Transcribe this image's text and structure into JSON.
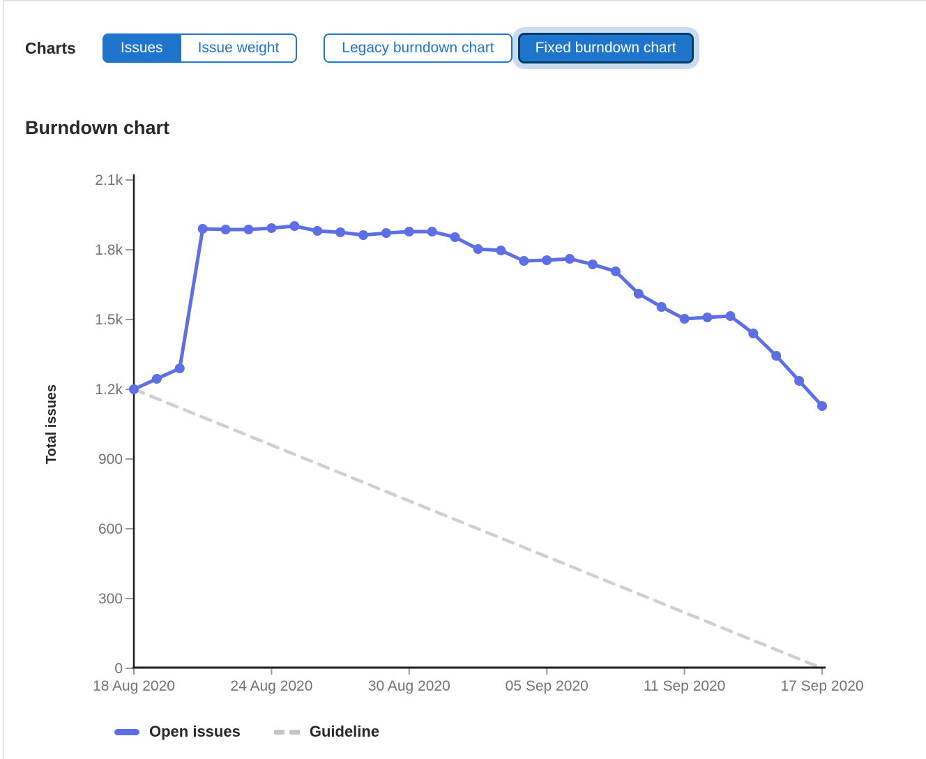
{
  "header": {
    "charts_label": "Charts",
    "issue_toggle": {
      "options": [
        {
          "label": "Issues",
          "selected": true
        },
        {
          "label": "Issue weight",
          "selected": false
        }
      ]
    },
    "chart_version_toggle": {
      "options": [
        {
          "label": "Legacy burndown chart",
          "selected": false
        },
        {
          "label": "Fixed burndown chart",
          "selected": true
        }
      ]
    }
  },
  "section": {
    "title": "Burndown chart"
  },
  "colors": {
    "accent": "#1f75cb",
    "accent_dark": "#043b68",
    "focus_ring": "#c7dcee",
    "line_blue": "#5e6fe6",
    "guideline_gray": "#cfcfd2",
    "axis": "#1f1e24",
    "tick": "#99989e",
    "tick_label": "#737278",
    "text": "#28272d",
    "border": "#e1e1e3"
  },
  "chart_data": {
    "type": "line",
    "title": "Burndown chart",
    "xlabel": "",
    "ylabel": "Total issues",
    "ylim": [
      0,
      2100
    ],
    "grid": false,
    "legend_position": "bottom-left",
    "categories": [
      "18 Aug 2020",
      "19 Aug 2020",
      "20 Aug 2020",
      "21 Aug 2020",
      "22 Aug 2020",
      "23 Aug 2020",
      "24 Aug 2020",
      "25 Aug 2020",
      "26 Aug 2020",
      "27 Aug 2020",
      "28 Aug 2020",
      "29 Aug 2020",
      "30 Aug 2020",
      "31 Aug 2020",
      "01 Sep 2020",
      "02 Sep 2020",
      "03 Sep 2020",
      "04 Sep 2020",
      "05 Sep 2020",
      "06 Sep 2020",
      "07 Sep 2020",
      "08 Sep 2020",
      "09 Sep 2020",
      "10 Sep 2020",
      "11 Sep 2020",
      "12 Sep 2020",
      "13 Sep 2020",
      "14 Sep 2020",
      "15 Sep 2020",
      "16 Sep 2020",
      "17 Sep 2020"
    ],
    "x_ticks": [
      {
        "index": 0,
        "label": "18 Aug 2020"
      },
      {
        "index": 6,
        "label": "24 Aug 2020"
      },
      {
        "index": 12,
        "label": "30 Aug 2020"
      },
      {
        "index": 18,
        "label": "05 Sep 2020"
      },
      {
        "index": 24,
        "label": "11 Sep 2020"
      },
      {
        "index": 30,
        "label": "17 Sep 2020"
      }
    ],
    "y_ticks": [
      {
        "value": 0,
        "label": "0"
      },
      {
        "value": 300,
        "label": "300"
      },
      {
        "value": 600,
        "label": "600"
      },
      {
        "value": 900,
        "label": "900"
      },
      {
        "value": 1200,
        "label": "1.2k"
      },
      {
        "value": 1500,
        "label": "1.5k"
      },
      {
        "value": 1800,
        "label": "1.8k"
      },
      {
        "value": 2100,
        "label": "2.1k"
      }
    ],
    "series": [
      {
        "name": "Open issues",
        "style": "solid",
        "color": "#5e6fe6",
        "values": [
          1200,
          1245,
          1290,
          1890,
          1887,
          1887,
          1893,
          1902,
          1881,
          1875,
          1863,
          1872,
          1878,
          1878,
          1854,
          1803,
          1797,
          1752,
          1755,
          1761,
          1737,
          1707,
          1611,
          1554,
          1503,
          1509,
          1515,
          1440,
          1344,
          1236,
          1128
        ]
      },
      {
        "name": "Guideline",
        "style": "dashed",
        "color": "#cfcfd2",
        "x_indices": [
          0,
          30
        ],
        "values": [
          1200,
          0
        ]
      }
    ]
  }
}
